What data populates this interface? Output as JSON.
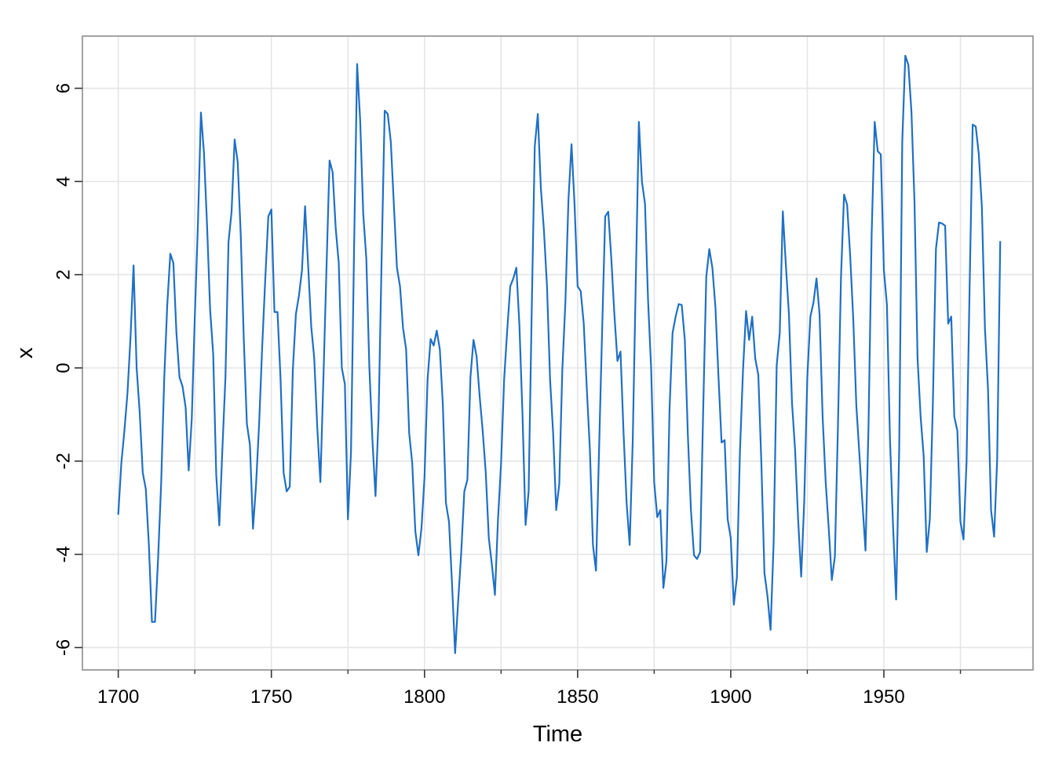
{
  "chart_data": {
    "type": "line",
    "xlabel": "Time",
    "ylabel": "x",
    "xlim": [
      1688.3,
      1998.7
    ],
    "ylim": [
      -6.48,
      7.12
    ],
    "x_start": 1700,
    "x_step": 1,
    "x_ticks": [
      1700,
      1750,
      1800,
      1850,
      1900,
      1950
    ],
    "x_tick_labels": [
      "1700",
      "1750",
      "1800",
      "1850",
      "1900",
      "1950"
    ],
    "x_minor_ticks": [
      1725,
      1775,
      1825,
      1875,
      1925,
      1975
    ],
    "y_ticks": [
      -6,
      -4,
      -2,
      0,
      2,
      4,
      6
    ],
    "y_tick_labels": [
      "-6",
      "-4",
      "-2",
      "0",
      "2",
      "4",
      "6"
    ],
    "grid": true,
    "colors": {
      "line": "#1f6fc5",
      "grid": "#e5e5e5",
      "frame": "#8c8c8c"
    },
    "series": [
      {
        "values": [
          -3.15,
          -2.05,
          -1.35,
          -0.55,
          0.65,
          2.2,
          0.0,
          -0.95,
          -2.25,
          -2.6,
          -3.8,
          -5.45,
          -5.45,
          -4.1,
          -2.5,
          -0.25,
          1.35,
          2.45,
          2.25,
          0.75,
          -0.2,
          -0.4,
          -0.85,
          -2.2,
          -1.1,
          1.1,
          3.05,
          5.48,
          4.6,
          3.05,
          1.25,
          0.3,
          -2.3,
          -3.38,
          -1.75,
          -0.2,
          2.7,
          3.35,
          4.9,
          4.42,
          2.85,
          0.6,
          -1.2,
          -1.65,
          -3.45,
          -2.5,
          -1.2,
          0.45,
          1.9,
          3.25,
          3.4,
          1.2,
          1.2,
          -0.25,
          -2.25,
          -2.65,
          -2.55,
          -0.05,
          1.15,
          1.55,
          2.1,
          3.47,
          2.2,
          0.9,
          0.2,
          -1.3,
          -2.45,
          -0.2,
          2.15,
          4.45,
          4.2,
          3.0,
          2.25,
          0.0,
          -0.35,
          -3.25,
          -1.8,
          2.55,
          6.52,
          5.3,
          3.3,
          2.35,
          0.0,
          -1.55,
          -2.75,
          -1.05,
          2.35,
          5.52,
          5.45,
          4.85,
          3.5,
          2.15,
          1.75,
          0.85,
          0.4,
          -1.4,
          -2.05,
          -3.5,
          -4.02,
          -3.45,
          -2.35,
          -0.25,
          0.62,
          0.48,
          0.8,
          0.4,
          -0.8,
          -2.9,
          -3.3,
          -4.65,
          -6.12,
          -5.0,
          -3.95,
          -2.65,
          -2.4,
          -0.2,
          0.6,
          0.25,
          -0.6,
          -1.35,
          -2.25,
          -3.65,
          -4.22,
          -4.87,
          -3.25,
          -2.05,
          -0.25,
          0.8,
          1.75,
          1.92,
          2.15,
          0.9,
          -1.0,
          -3.37,
          -2.65,
          1.2,
          4.75,
          5.45,
          3.85,
          2.95,
          1.75,
          -0.25,
          -1.4,
          -3.05,
          -2.5,
          -0.05,
          1.4,
          3.6,
          4.8,
          3.5,
          1.75,
          1.65,
          0.95,
          -0.45,
          -1.75,
          -3.8,
          -4.35,
          -1.75,
          0.8,
          3.25,
          3.35,
          2.35,
          1.15,
          0.15,
          0.35,
          -1.4,
          -2.9,
          -3.8,
          -1.55,
          1.9,
          5.28,
          4.0,
          3.52,
          1.45,
          0.0,
          -2.45,
          -3.2,
          -3.05,
          -4.72,
          -4.15,
          -0.9,
          0.75,
          1.1,
          1.37,
          1.35,
          0.6,
          -1.45,
          -3.05,
          -4.02,
          -4.1,
          -3.95,
          -0.9,
          1.95,
          2.55,
          2.15,
          1.3,
          -0.2,
          -1.6,
          -1.55,
          -3.25,
          -3.65,
          -5.08,
          -4.5,
          -1.8,
          -0.05,
          1.22,
          0.6,
          1.1,
          0.2,
          -0.15,
          -2.05,
          -4.4,
          -4.9,
          -5.62,
          -3.75,
          0.05,
          0.75,
          3.36,
          2.2,
          1.15,
          -0.75,
          -1.75,
          -3.25,
          -4.48,
          -2.85,
          -0.2,
          1.1,
          1.4,
          1.92,
          1.15,
          -1.05,
          -2.45,
          -3.45,
          -4.55,
          -4.05,
          -1.25,
          1.95,
          3.72,
          3.5,
          2.4,
          1.05,
          -0.8,
          -1.85,
          -2.9,
          -3.92,
          -1.2,
          2.85,
          5.28,
          4.65,
          4.58,
          2.1,
          1.35,
          -1.55,
          -3.4,
          -4.97,
          -1.75,
          4.85,
          6.7,
          6.5,
          5.5,
          3.55,
          0.2,
          -1.05,
          -1.9,
          -3.95,
          -3.25,
          -0.75,
          2.55,
          3.12,
          3.1,
          3.05,
          0.95,
          1.1,
          -1.05,
          -1.35,
          -3.3,
          -3.68,
          -2.0,
          1.75,
          5.22,
          5.18,
          4.58,
          3.45,
          0.85,
          -0.45,
          -3.05,
          -3.62,
          -1.95,
          2.72
        ]
      }
    ]
  }
}
